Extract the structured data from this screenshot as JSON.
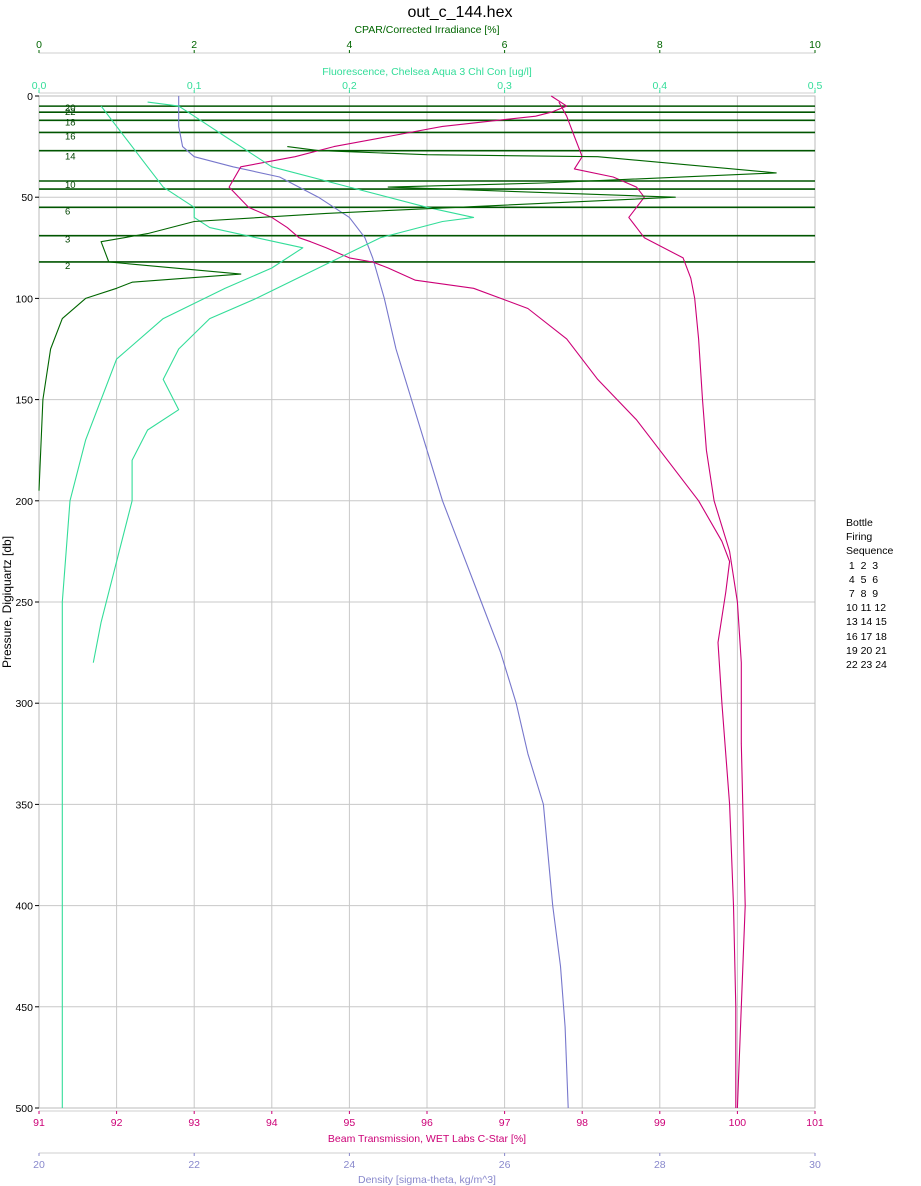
{
  "title": "out_c_144.hex",
  "chart_data": {
    "type": "line",
    "title": "out_c_144.hex",
    "ylabel": "Pressure, Digiquartz [db]",
    "ylim": [
      0,
      500
    ],
    "yinvert": true,
    "y_ticks": [
      0,
      50,
      100,
      150,
      200,
      250,
      300,
      350,
      400,
      450,
      500
    ],
    "grid": true,
    "axes": [
      {
        "key": "cpar",
        "label": "CPAR/Corrected Irradiance [%]",
        "range": [
          0,
          10
        ],
        "ticks": [
          "0",
          "2",
          "4",
          "6",
          "8",
          "10"
        ],
        "color": "#006600",
        "position": "top"
      },
      {
        "key": "fl",
        "label": "Fluorescence, Chelsea Aqua 3 Chl Con [ug/l]",
        "range": [
          0,
          0.5
        ],
        "ticks": [
          "0,0",
          "0,1",
          "0,2",
          "0,3",
          "0,4",
          "0,5"
        ],
        "color": "#33dd99",
        "position": "top"
      },
      {
        "key": "bt",
        "label": "Beam Transmission, WET Labs C-Star [%]",
        "range": [
          91,
          101
        ],
        "ticks": [
          "91",
          "92",
          "93",
          "94",
          "95",
          "96",
          "97",
          "98",
          "99",
          "100",
          "101"
        ],
        "color": "#cc0077",
        "position": "bottom"
      },
      {
        "key": "den",
        "label": "Density [sigma-theta, kg/m^3]",
        "range": [
          20,
          30
        ],
        "ticks": [
          "20",
          "22",
          "24",
          "26",
          "28",
          "30"
        ],
        "color": "#8888cc",
        "position": "bottom"
      }
    ],
    "series": [
      {
        "axis": "den",
        "color": "#7777cc",
        "x": [
          21.8,
          21.8,
          21.85,
          22.0,
          22.5,
          23.1,
          23.6,
          24.0,
          24.2,
          24.3,
          24.45,
          24.6,
          24.8,
          25.0,
          25.2,
          25.45,
          25.7,
          25.95,
          26.15,
          26.3,
          26.5,
          26.62,
          26.72,
          26.78,
          26.82
        ],
        "y": [
          0,
          15,
          25,
          30,
          35,
          40,
          50,
          60,
          70,
          80,
          100,
          125,
          150,
          175,
          200,
          225,
          250,
          275,
          300,
          325,
          350,
          400,
          430,
          460,
          500
        ]
      },
      {
        "axis": "bt",
        "color": "#cc0077",
        "x": [
          97.6,
          97.8,
          97.6,
          97.4,
          96.2,
          95.5,
          94.8,
          94.3,
          93.6,
          93.45,
          93.7,
          94.0,
          94.2,
          94.35,
          94.5,
          94.7,
          95.0,
          95.3,
          95.5,
          95.85,
          96.6,
          97.3,
          97.8,
          98.2,
          98.7,
          99.1,
          99.5,
          99.8,
          99.9,
          99.85,
          99.75,
          99.8,
          99.9,
          99.95,
          99.98,
          99.98
        ],
        "y": [
          0,
          5,
          8,
          10,
          15,
          20,
          25,
          30,
          35,
          45,
          55,
          60,
          65,
          70,
          72,
          75,
          80,
          82,
          85,
          91,
          95,
          105,
          120,
          140,
          160,
          180,
          200,
          220,
          230,
          245,
          270,
          300,
          350,
          400,
          450,
          500
        ]
      },
      {
        "axis": "bt",
        "color": "#cc0077",
        "x": [
          97.7,
          97.8,
          97.9,
          97.95,
          98.0,
          97.9,
          98.4,
          98.7,
          98.8,
          98.6,
          98.8,
          99.3,
          99.4,
          99.45,
          99.5,
          99.55,
          99.6,
          99.7,
          99.9,
          100.0,
          100.05,
          100.05,
          100.1,
          100.05,
          100.0
        ],
        "y": [
          3,
          10,
          20,
          25,
          30,
          36,
          40,
          45,
          50,
          60,
          70,
          80,
          90,
          100,
          120,
          150,
          175,
          200,
          225,
          250,
          280,
          320,
          400,
          450,
          500
        ]
      },
      {
        "axis": "fl",
        "color": "#33dd99",
        "x": [
          0.07,
          0.09,
          0.1,
          0.12,
          0.15,
          0.2,
          0.25,
          0.28,
          0.26,
          0.22,
          0.18,
          0.14,
          0.11,
          0.09,
          0.08,
          0.09,
          0.07,
          0.06,
          0.06,
          0.05,
          0.04,
          0.035
        ],
        "y": [
          3,
          5,
          10,
          20,
          35,
          45,
          55,
          60,
          62,
          70,
          85,
          100,
          110,
          125,
          140,
          155,
          165,
          180,
          200,
          230,
          260,
          280
        ]
      },
      {
        "axis": "fl",
        "color": "#33dd99",
        "x": [
          0.04,
          0.05,
          0.06,
          0.07,
          0.08,
          0.09,
          0.1,
          0.1,
          0.11,
          0.14,
          0.17,
          0.15,
          0.12,
          0.08,
          0.05,
          0.04,
          0.03,
          0.02,
          0.015,
          0.015
        ],
        "y": [
          5,
          15,
          25,
          35,
          45,
          50,
          55,
          60,
          65,
          70,
          75,
          85,
          95,
          110,
          130,
          150,
          170,
          200,
          250,
          500
        ]
      },
      {
        "axis": "cpar",
        "color": "#006600",
        "x": [
          3.2,
          3.6,
          5.0,
          7.2,
          9.5,
          6.5,
          4.5,
          8.2,
          5.4,
          3.7,
          2.0,
          1.4,
          0.8,
          0.9,
          2.6,
          1.2,
          1.0,
          0.6,
          0.3,
          0.15,
          0.05,
          0.0
        ],
        "y": [
          25,
          27,
          29,
          30,
          38,
          43,
          45,
          50,
          55,
          58,
          62,
          68,
          72,
          82,
          88,
          92,
          95,
          100,
          110,
          125,
          150,
          195
        ]
      }
    ],
    "bottle_lines": [
      5,
      8,
      12,
      18,
      27,
      42,
      46,
      55,
      69,
      82
    ],
    "bottle_labels": [
      {
        "text": "20",
        "y": 6
      },
      {
        "text": "22",
        "y": 8
      },
      {
        "text": "18",
        "y": 13
      },
      {
        "text": "16",
        "y": 20
      },
      {
        "text": "14",
        "y": 30
      },
      {
        "text": "10",
        "y": 44
      },
      {
        "text": "6",
        "y": 57
      },
      {
        "text": "3",
        "y": 71
      },
      {
        "text": "2",
        "y": 84
      }
    ],
    "legend": {
      "title_lines": [
        "Bottle",
        "Firing",
        "Sequence"
      ],
      "rows": [
        " 1  2  3",
        " 4  5  6",
        " 7  8  9",
        "10 11 12",
        "13 14 15",
        "16 17 18",
        "19 20 21",
        "22 23 24"
      ],
      "placement": "right"
    }
  }
}
